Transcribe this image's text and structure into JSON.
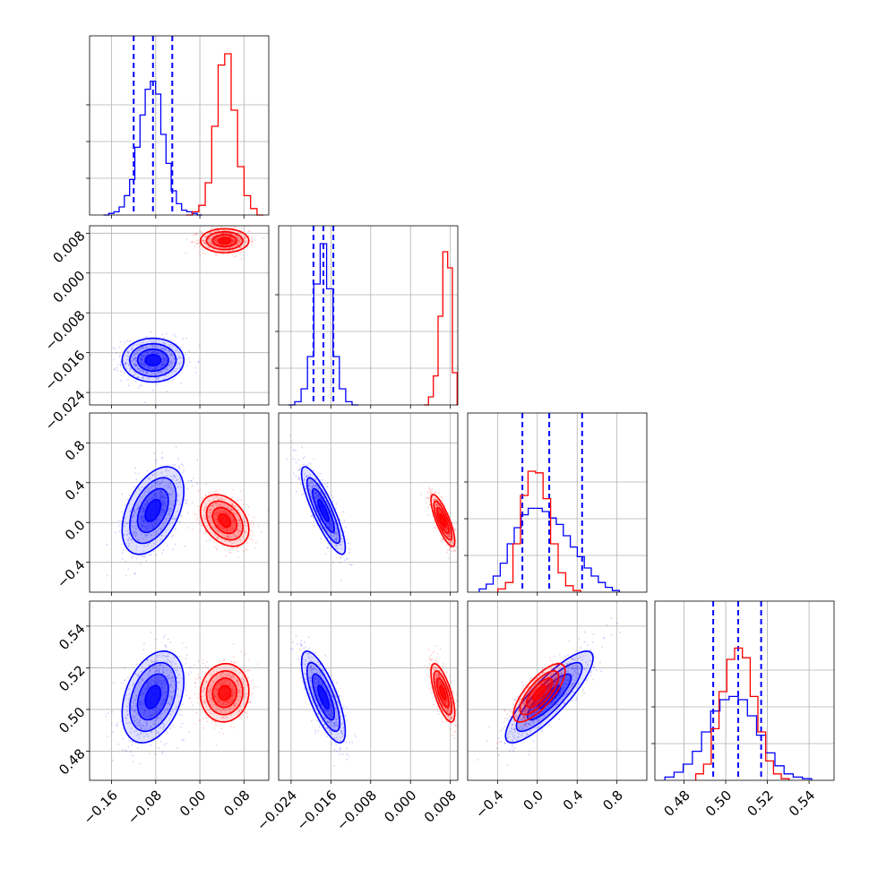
{
  "chart_data": {
    "type": "corner",
    "title": "",
    "grid": true,
    "colors": {
      "series_a": "#0000ff",
      "series_b": "#ff0000"
    },
    "parameters": [
      {
        "ticks": [
          "−0.16",
          "−0.08",
          "0.00",
          "0.08"
        ],
        "tick_values": [
          -0.16,
          -0.08,
          0.0,
          0.08
        ],
        "range": [
          -0.2,
          0.125
        ]
      },
      {
        "ticks": [
          "−0.024",
          "−0.016",
          "−0.008",
          "0.000",
          "0.008"
        ],
        "tick_values": [
          -0.024,
          -0.016,
          -0.008,
          0.0,
          0.008
        ],
        "range": [
          -0.0265,
          0.0095
        ]
      },
      {
        "ticks": [
          "−0.4",
          "0.0",
          "0.4",
          "0.8"
        ],
        "tick_values": [
          -0.4,
          0.0,
          0.4,
          0.8
        ],
        "range": [
          -0.7,
          1.1
        ]
      },
      {
        "ticks": [
          "0.48",
          "0.50",
          "0.52",
          "0.54"
        ],
        "tick_values": [
          0.48,
          0.5,
          0.52,
          0.54
        ],
        "range": [
          0.466,
          0.552
        ]
      }
    ],
    "series": [
      {
        "color": "#0000ff",
        "means": [
          -0.085,
          -0.0175,
          0.12,
          0.506
        ],
        "stds": [
          0.028,
          0.0022,
          0.22,
          0.011
        ],
        "corr": {
          "0-2": 0.45,
          "1-2": -0.85,
          "0-3": 0.35,
          "1-3": -0.75,
          "2-3": 0.85
        },
        "quantiles": [
          [
            -0.12,
            -0.085,
            -0.05
          ],
          [
            -0.0195,
            -0.0175,
            -0.0155
          ],
          [
            -0.15,
            0.12,
            0.45
          ],
          [
            0.494,
            0.506,
            0.517
          ]
        ],
        "histograms": [
          [
            0.0,
            0.01,
            0.02,
            0.05,
            0.12,
            0.22,
            0.42,
            0.62,
            0.78,
            0.83,
            0.75,
            0.5,
            0.32,
            0.15,
            0.07,
            0.03,
            0.02,
            0.01,
            0.0
          ],
          [
            0.0,
            0.02,
            0.1,
            0.3,
            0.75,
            1.0,
            0.72,
            0.3,
            0.1,
            0.02,
            0.0
          ],
          [
            0.02,
            0.05,
            0.1,
            0.18,
            0.3,
            0.4,
            0.48,
            0.52,
            0.52,
            0.5,
            0.46,
            0.42,
            0.35,
            0.28,
            0.22,
            0.15,
            0.1,
            0.06,
            0.03,
            0.01
          ],
          [
            0.02,
            0.05,
            0.1,
            0.18,
            0.3,
            0.43,
            0.5,
            0.52,
            0.5,
            0.4,
            0.28,
            0.17,
            0.09,
            0.04,
            0.02,
            0.01
          ]
        ]
      },
      {
        "color": "#ff0000",
        "means": [
          0.045,
          0.0065,
          0.02,
          0.508
        ],
        "stds": [
          0.022,
          0.0012,
          0.13,
          0.007
        ],
        "corr": {
          "0-2": -0.35,
          "1-2": -0.8,
          "0-3": 0.05,
          "1-3": -0.7,
          "2-3": 0.75
        },
        "quantiles": null,
        "histograms": [
          [
            0.0,
            0.02,
            0.06,
            0.2,
            0.55,
            0.93,
            1.0,
            0.65,
            0.3,
            0.12,
            0.04,
            0.0
          ],
          [
            0.0,
            0.05,
            0.18,
            0.55,
            0.95,
            0.85,
            0.2,
            0.0
          ],
          [
            0.02,
            0.06,
            0.3,
            0.6,
            0.75,
            0.74,
            0.58,
            0.3,
            0.12,
            0.04,
            0.01
          ],
          [
            0.04,
            0.1,
            0.32,
            0.55,
            0.75,
            0.82,
            0.76,
            0.52,
            0.3,
            0.12,
            0.04,
            0.01
          ]
        ]
      }
    ]
  }
}
